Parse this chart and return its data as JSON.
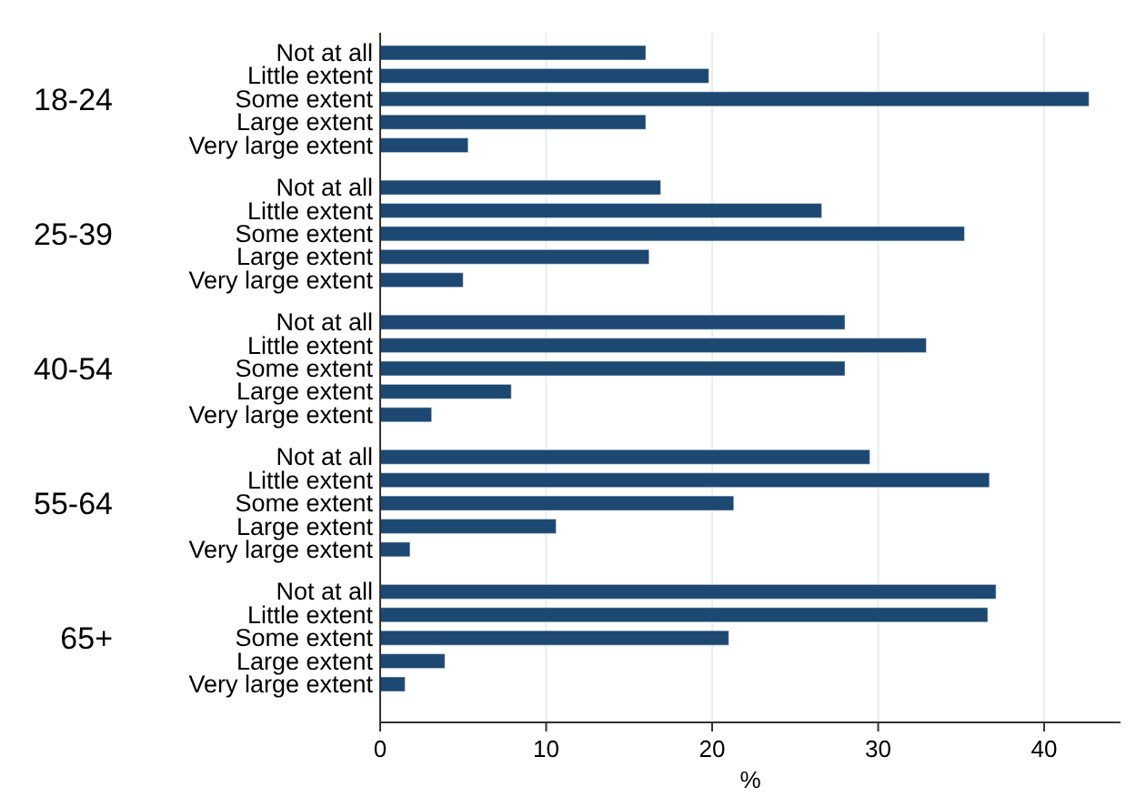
{
  "chart_data": {
    "type": "bar",
    "orientation": "horizontal",
    "xlabel": "%",
    "categories": [
      "Not at all",
      "Little extent",
      "Some extent",
      "Large extent",
      "Very large extent",
      "Not at all",
      "Little extent",
      "Some extent",
      "Large extent",
      "Very large extent",
      "Not at all",
      "Little extent",
      "Some extent",
      "Large extent",
      "Very large extent",
      "Not at all",
      "Little extent",
      "Some extent",
      "Large extent",
      "Very large extent",
      "Not at all",
      "Little extent",
      "Some extent",
      "Large extent",
      "Very large extent"
    ],
    "values": [
      16.0,
      19.8,
      42.7,
      16.0,
      5.3,
      16.9,
      26.6,
      35.2,
      16.2,
      5.0,
      28.0,
      32.9,
      28.0,
      7.9,
      3.1,
      29.5,
      36.7,
      21.3,
      10.6,
      1.8,
      37.1,
      36.6,
      21.0,
      3.9,
      1.5
    ],
    "color": "#1c4872",
    "annotations": [
      "18-24",
      "25-39",
      "40-54",
      "55-64",
      "65+"
    ],
    "xlim": [
      0,
      44.6
    ],
    "xticks": [
      0,
      10,
      20,
      30,
      40
    ],
    "grid": "x"
  }
}
